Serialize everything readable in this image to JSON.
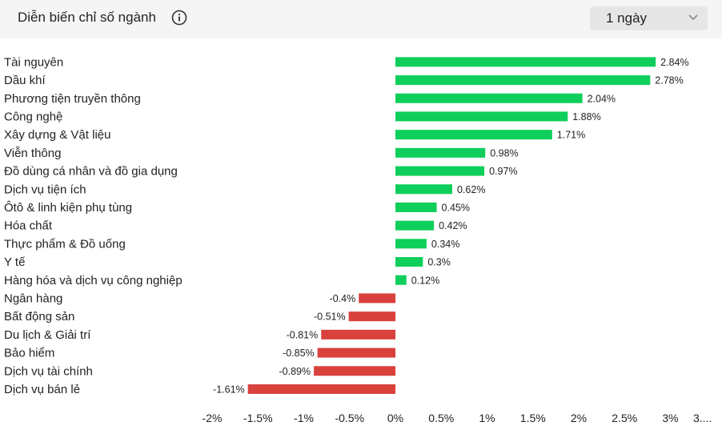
{
  "header": {
    "title": "Diễn biến chỉ số ngành",
    "info_icon": "info-circle-icon",
    "period": {
      "selected": "1 ngày",
      "icon": "chevron-down-icon"
    }
  },
  "colors": {
    "positive": "#0ecf5b",
    "negative": "#d9413c"
  },
  "chart_data": {
    "type": "bar",
    "orientation": "horizontal",
    "categories": [
      "Tài nguyên",
      "Dầu khí",
      "Phương tiện truyền thông",
      "Công nghệ",
      "Xây dựng & Vật liệu",
      "Viễn thông",
      "Đồ dùng cá nhân và đồ gia dụng",
      "Dịch vụ tiện ích",
      "Ôtô & linh kiện phụ tùng",
      "Hóa chất",
      "Thực phẩm & Đồ uống",
      "Y tế",
      "Hàng hóa và dịch vụ công nghiệp",
      "Ngân hàng",
      "Bất động sản",
      "Du lịch & Giải trí",
      "Bảo hiểm",
      "Dịch vụ tài chính",
      "Dịch vụ bán lẻ"
    ],
    "values": [
      2.84,
      2.78,
      2.04,
      1.88,
      1.71,
      0.98,
      0.97,
      0.62,
      0.45,
      0.42,
      0.34,
      0.3,
      0.12,
      -0.4,
      -0.51,
      -0.81,
      -0.85,
      -0.89,
      -1.61
    ],
    "value_labels": [
      "2.84%",
      "2.78%",
      "2.04%",
      "1.88%",
      "1.71%",
      "0.98%",
      "0.97%",
      "0.62%",
      "0.45%",
      "0.42%",
      "0.34%",
      "0.3%",
      "0.12%",
      "-0.4%",
      "-0.51%",
      "-0.81%",
      "-0.85%",
      "-0.89%",
      "-1.61%"
    ],
    "xlim": [
      -2,
      3.5
    ],
    "x_ticks": [
      -2,
      -1.5,
      -1,
      -0.5,
      0,
      0.5,
      1,
      1.5,
      2,
      2.5,
      3,
      3.5
    ],
    "x_tick_labels": [
      "-2%",
      "-1.5%",
      "-1%",
      "-0.5%",
      "0%",
      "0.5%",
      "1%",
      "1.5%",
      "2%",
      "2.5%",
      "3%",
      "3...."
    ],
    "grid": false,
    "legend": "none"
  }
}
